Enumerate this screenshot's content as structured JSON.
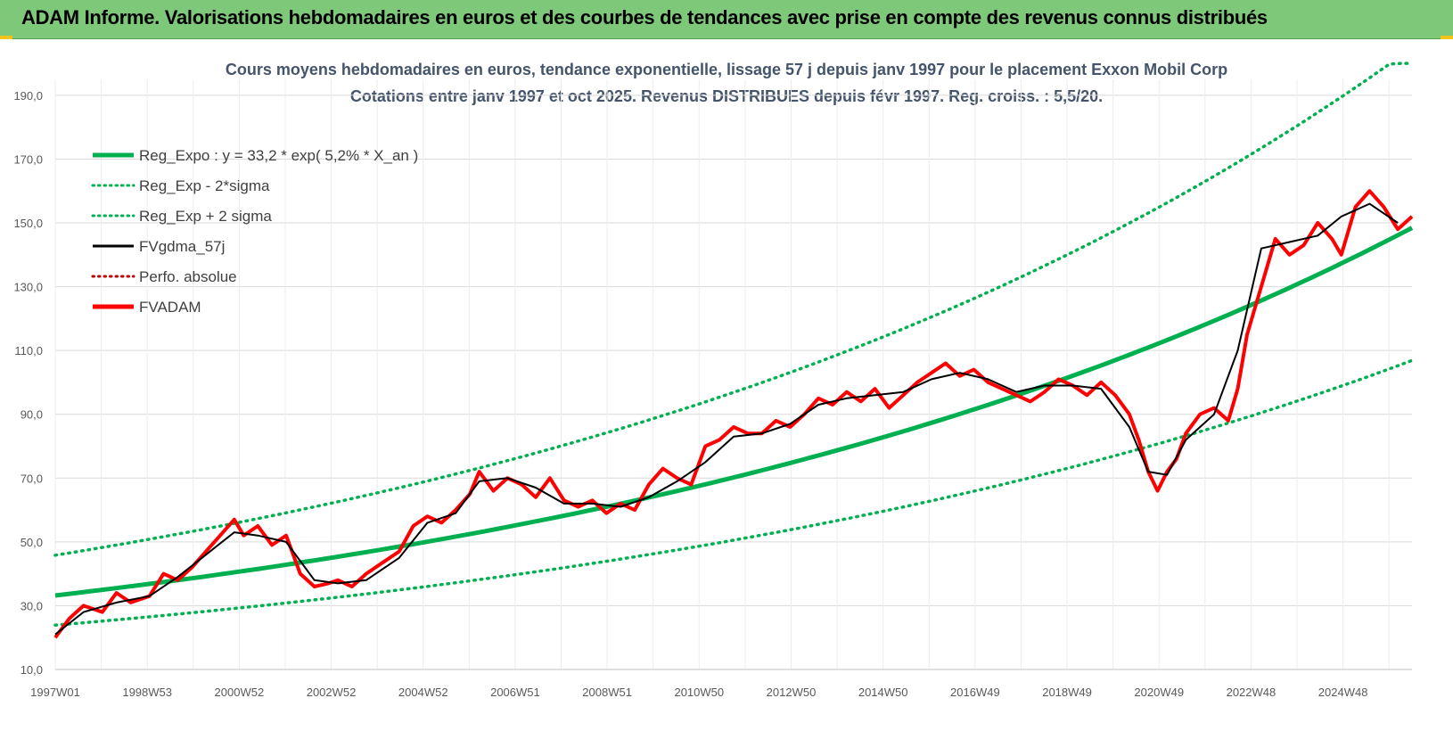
{
  "header": {
    "title": "ADAM Informe. Valorisations hebdomadaires en euros et des courbes de tendances avec prise en compte des revenus connus distribués"
  },
  "colors": {
    "banner": "#7ec87a",
    "reg_expo": "#00b050",
    "fvgdma": "#000000",
    "fvadam": "#ff0000",
    "perfo": "#c00000",
    "gridline": "#d9d9d9"
  },
  "chart_data": {
    "type": "line",
    "title": "Cours moyens hebdomadaires en euros, tendance exponentielle, lissage 57 j depuis janv 1997 pour le placement Exxon Mobil Corp",
    "subtitle": "Cotations entre janv 1997 et oct 2025. Revenus DISTRIBUES depuis févr 1997. Reg. croiss. : 5,5/20.",
    "xlabel": "",
    "ylabel": "",
    "x_ticks": [
      "1997W01",
      "1998W53",
      "2000W52",
      "2002W52",
      "2004W52",
      "2006W51",
      "2008W51",
      "2010W50",
      "2012W50",
      "2014W50",
      "2016W49",
      "2018W49",
      "2020W49",
      "2022W48",
      "2024W48"
    ],
    "y_ticks": [
      "10,0",
      "30,0",
      "50,0",
      "70,0",
      "90,0",
      "110,0",
      "130,0",
      "150,0",
      "170,0",
      "190,0"
    ],
    "ylim": [
      10,
      195
    ],
    "xlim": [
      1997.0,
      2025.8
    ],
    "grid": true,
    "legend_position": "top-left",
    "legend": [
      {
        "label": "Reg_Expo : y = 33,2 * exp( 5,2% *  X_an )",
        "style": "solid-thick",
        "color": "#00b050"
      },
      {
        "label": "Reg_Exp - 2*sigma",
        "style": "dotted",
        "color": "#00b050"
      },
      {
        "label": "Reg_Exp + 2 sigma",
        "style": "dotted",
        "color": "#00b050"
      },
      {
        "label": "FVgdma_57j",
        "style": "solid",
        "color": "#000000"
      },
      {
        "label": "Perfo. absolue",
        "style": "dotted",
        "color": "#c00000"
      },
      {
        "label": "FVADAM",
        "style": "solid-thick",
        "color": "#ff0000"
      }
    ],
    "regression": {
      "a": 33.2,
      "rate": 0.052,
      "lower_factor": 0.72,
      "upper_factor": 1.38
    },
    "series": [
      {
        "name": "FVADAM",
        "x": [
          1997.0,
          1997.3,
          1997.6,
          1998.0,
          1998.3,
          1998.6,
          1999.0,
          1999.3,
          1999.6,
          1999.9,
          2000.2,
          2000.5,
          2000.8,
          2001.0,
          2001.3,
          2001.6,
          2001.9,
          2002.2,
          2002.5,
          2002.8,
          2003.0,
          2003.3,
          2003.6,
          2004.0,
          2004.3,
          2004.6,
          2004.9,
          2005.2,
          2005.5,
          2005.8,
          2006.0,
          2006.3,
          2006.6,
          2006.9,
          2007.2,
          2007.5,
          2007.8,
          2008.1,
          2008.4,
          2008.7,
          2009.0,
          2009.3,
          2009.6,
          2009.9,
          2010.2,
          2010.5,
          2010.8,
          2011.1,
          2011.4,
          2011.7,
          2012.0,
          2012.3,
          2012.6,
          2012.9,
          2013.2,
          2013.5,
          2013.8,
          2014.1,
          2014.4,
          2014.7,
          2015.0,
          2015.3,
          2015.6,
          2015.9,
          2016.2,
          2016.5,
          2016.8,
          2017.1,
          2017.4,
          2017.7,
          2018.0,
          2018.3,
          2018.6,
          2018.9,
          2019.2,
          2019.5,
          2019.8,
          2020.0,
          2020.2,
          2020.4,
          2020.6,
          2020.8,
          2021.0,
          2021.3,
          2021.6,
          2021.9,
          2022.1,
          2022.3,
          2022.6,
          2022.9,
          2023.2,
          2023.5,
          2023.8,
          2024.1,
          2024.3,
          2024.6,
          2024.9,
          2025.2,
          2025.5,
          2025.8
        ],
        "y": [
          20,
          26,
          30,
          28,
          34,
          31,
          33,
          40,
          38,
          42,
          47,
          52,
          57,
          52,
          55,
          49,
          52,
          40,
          36,
          37,
          38,
          36,
          40,
          44,
          47,
          55,
          58,
          56,
          60,
          65,
          72,
          66,
          70,
          68,
          64,
          70,
          63,
          61,
          63,
          59,
          62,
          60,
          68,
          73,
          70,
          68,
          80,
          82,
          86,
          84,
          84,
          88,
          86,
          90,
          95,
          93,
          97,
          94,
          98,
          92,
          96,
          100,
          103,
          106,
          102,
          104,
          100,
          98,
          96,
          94,
          97,
          101,
          99,
          96,
          100,
          96,
          90,
          82,
          72,
          66,
          72,
          76,
          84,
          90,
          92,
          88,
          98,
          115,
          130,
          145,
          140,
          143,
          150,
          145,
          140,
          155,
          160,
          155,
          148,
          152
        ]
      },
      {
        "name": "FVgdma_57j",
        "x": [
          1997.0,
          1997.6,
          1998.3,
          1999.0,
          1999.6,
          2000.2,
          2000.8,
          2001.3,
          2001.9,
          2002.5,
          2003.0,
          2003.6,
          2004.3,
          2004.9,
          2005.5,
          2006.0,
          2006.6,
          2007.2,
          2007.8,
          2008.4,
          2009.0,
          2009.6,
          2010.2,
          2010.8,
          2011.4,
          2012.0,
          2012.6,
          2013.2,
          2013.8,
          2014.4,
          2015.0,
          2015.6,
          2016.2,
          2016.8,
          2017.4,
          2018.0,
          2018.6,
          2019.2,
          2019.8,
          2020.2,
          2020.6,
          2021.0,
          2021.6,
          2022.1,
          2022.6,
          2023.2,
          2023.8,
          2024.3,
          2024.9,
          2025.5
        ],
        "y": [
          21,
          28,
          31,
          33,
          39,
          46,
          53,
          52,
          50,
          38,
          37,
          38,
          45,
          56,
          59,
          69,
          70,
          67,
          62,
          62,
          61,
          64,
          69,
          75,
          83,
          84,
          87,
          93,
          95,
          96,
          97,
          101,
          103,
          101,
          97,
          99,
          99,
          98,
          86,
          72,
          71,
          82,
          90,
          110,
          142,
          144,
          146,
          152,
          156,
          150
        ]
      }
    ]
  }
}
